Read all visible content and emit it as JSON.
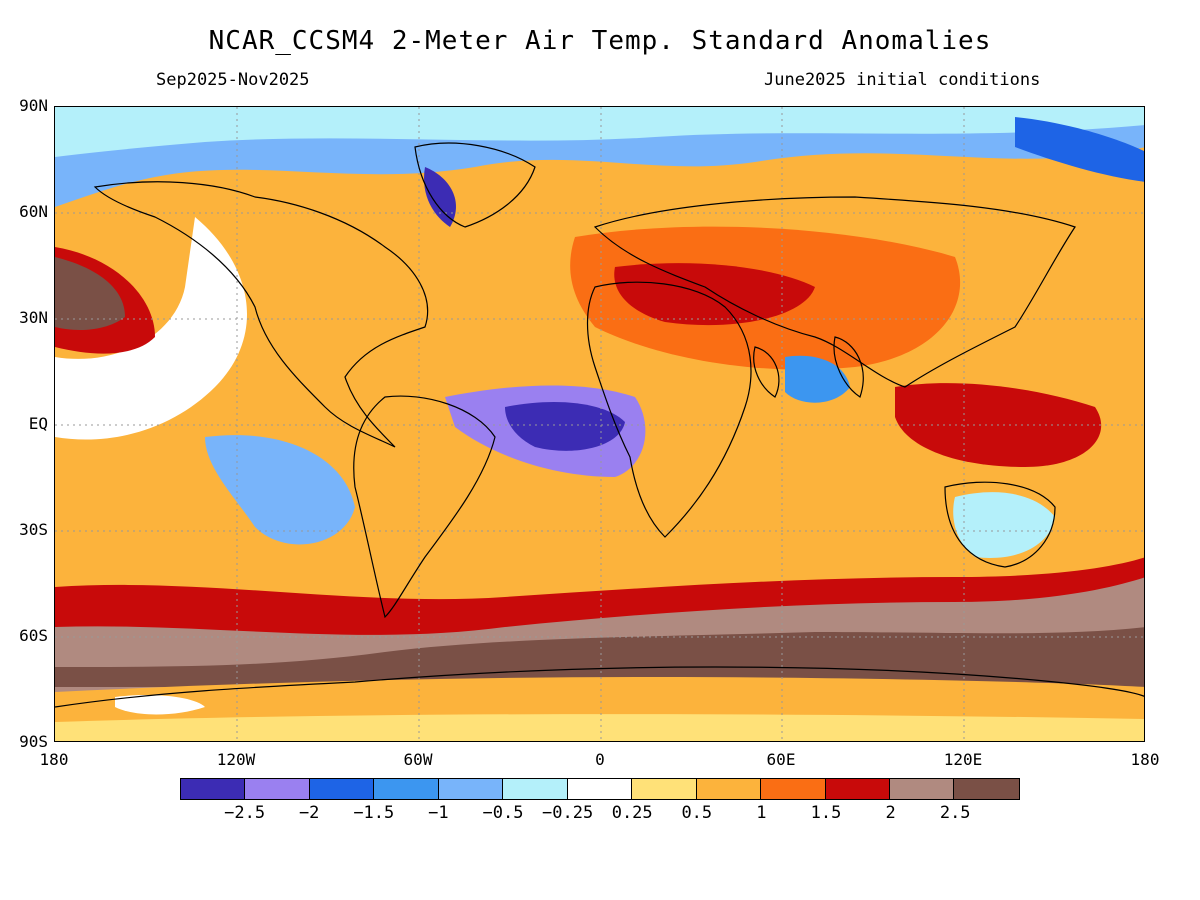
{
  "header": {
    "title": "NCAR_CCSM4 2-Meter Air Temp. Standard Anomalies",
    "period": "Sep2025-Nov2025",
    "init": "June2025 initial conditions"
  },
  "axes": {
    "lat_labels": [
      "90N",
      "60N",
      "30N",
      "EQ",
      "30S",
      "60S",
      "90S"
    ],
    "lon_labels": [
      "180",
      "120W",
      "60W",
      "0",
      "60E",
      "120E",
      "180"
    ]
  },
  "legend": {
    "colors": [
      "#3c2cb4",
      "#9a80f0",
      "#1e64e6",
      "#3c96f0",
      "#78b4fa",
      "#b4f0fa",
      "#ffffff",
      "#ffe178",
      "#fcb33c",
      "#fa6e14",
      "#c80a0a",
      "#b08a80",
      "#7a5046"
    ],
    "labels": [
      "−2.5",
      "−2",
      "−1.5",
      "−1",
      "−0.5",
      "−0.25",
      "0.25",
      "0.5",
      "1",
      "1.5",
      "2",
      "2.5"
    ]
  }
}
